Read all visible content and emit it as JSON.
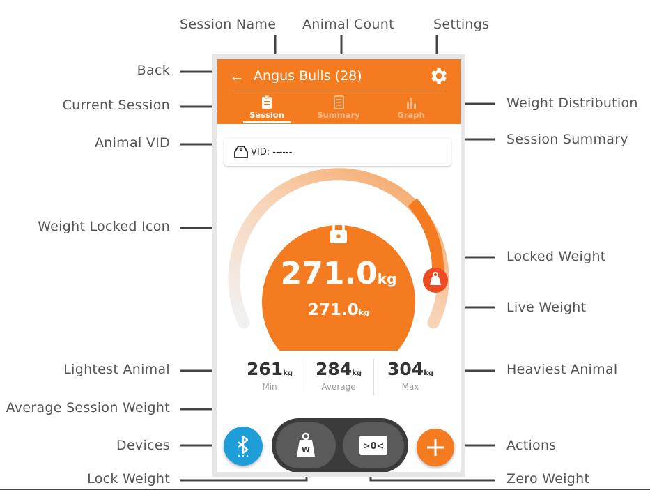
{
  "callouts": {
    "session_name": "Session Name",
    "animal_count": "Animal Count",
    "settings": "Settings",
    "back": "Back",
    "current_session": "Current Session",
    "weight_distribution": "Weight Distribution",
    "session_summary": "Session Summary",
    "animal_vid": "Animal VID",
    "weight_locked_icon": "Weight Locked Icon",
    "locked_weight": "Locked Weight",
    "live_weight": "Live Weight",
    "lightest_animal": "Lightest Animal",
    "heaviest_animal": "Heaviest Animal",
    "average_session_weight": "Average Session Weight",
    "devices": "Devices",
    "actions": "Actions",
    "lock_weight": "Lock Weight",
    "zero_weight": "Zero Weight"
  },
  "app": {
    "back_icon": "arrow-left-icon",
    "back_glyph": "←",
    "title": "Angus Bulls (28)",
    "settings_icon": "gear-icon",
    "header_color": "#f47b20"
  },
  "tabs": [
    {
      "label": "Session",
      "icon": "clipboard-icon",
      "active": true
    },
    {
      "label": "Summary",
      "icon": "document-icon",
      "active": false
    },
    {
      "label": "Graph",
      "icon": "bar-chart-icon",
      "active": false
    }
  ],
  "vid": {
    "icon": "tag-icon",
    "text": "VID: ------"
  },
  "weight": {
    "locked_value": "271.0",
    "locked_unit": "kg",
    "live_value": "271.0",
    "live_unit": "kg",
    "lock_icon": "lock-icon",
    "badge_icon": "weight-icon"
  },
  "stats": {
    "min": {
      "value": "261",
      "unit": "kg",
      "label": "Min"
    },
    "average": {
      "value": "284",
      "unit": "kg",
      "label": "Average"
    },
    "max": {
      "value": "304",
      "unit": "kg",
      "label": "Max"
    }
  },
  "controls": {
    "devices_icon": "bluetooth-icon",
    "lock_weight_icon": "weight-icon",
    "lock_weight_glyph": "W",
    "zero_weight_icon": "zero-icon",
    "zero_weight_glyph": ">0<",
    "actions_icon": "plus-icon",
    "actions_glyph": "+",
    "devices_color": "#1f9dd9",
    "actions_color": "#f47b20"
  }
}
